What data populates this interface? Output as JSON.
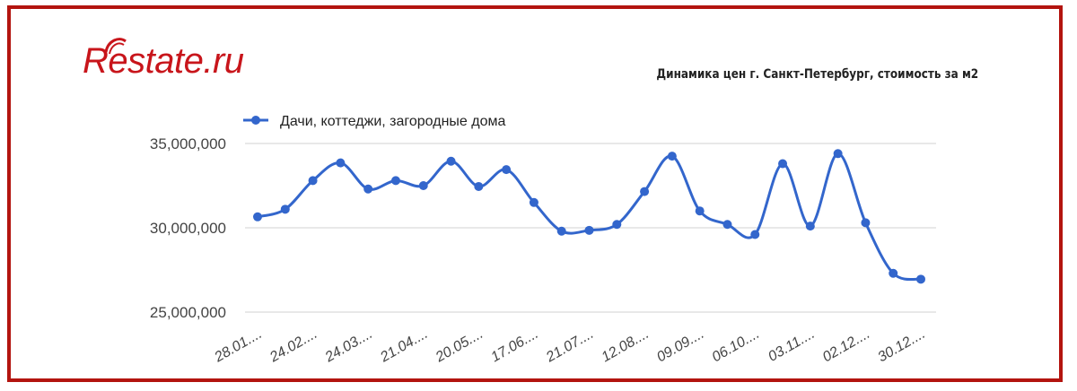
{
  "logo": {
    "text": "Restate.ru"
  },
  "chart_data": {
    "type": "line",
    "title": "Динамика цен г. Санкт-Петербург, стоимость за м2",
    "xlabel": "",
    "ylabel": "",
    "ylim": [
      25000000,
      35000000
    ],
    "yticks": [
      "35,000,000",
      "30,000,000",
      "25,000,000"
    ],
    "ytick_values": [
      35000000,
      30000000,
      25000000
    ],
    "legend_position": "top-left",
    "grid": true,
    "colors": {
      "series": "#3366cc",
      "grid": "#d9d9d9",
      "frame": "#b3140f",
      "logo": "#c8151b"
    },
    "x_tick_labels": [
      "28.01....",
      "24.02....",
      "24.03....",
      "21.04....",
      "20.05....",
      "17.06....",
      "21.07....",
      "12.08....",
      "09.09....",
      "06.10....",
      "03.11....",
      "02.12....",
      "30.12...."
    ],
    "series": [
      {
        "name": "Дачи, коттеджи, загородные дома",
        "values": [
          30650000,
          31100000,
          32800000,
          33850000,
          32300000,
          32800000,
          32500000,
          33950000,
          32450000,
          33450000,
          31500000,
          29800000,
          29850000,
          30200000,
          32150000,
          34250000,
          31000000,
          30200000,
          29600000,
          33800000,
          30100000,
          34400000,
          30300000,
          27300000,
          26950000
        ]
      }
    ]
  }
}
